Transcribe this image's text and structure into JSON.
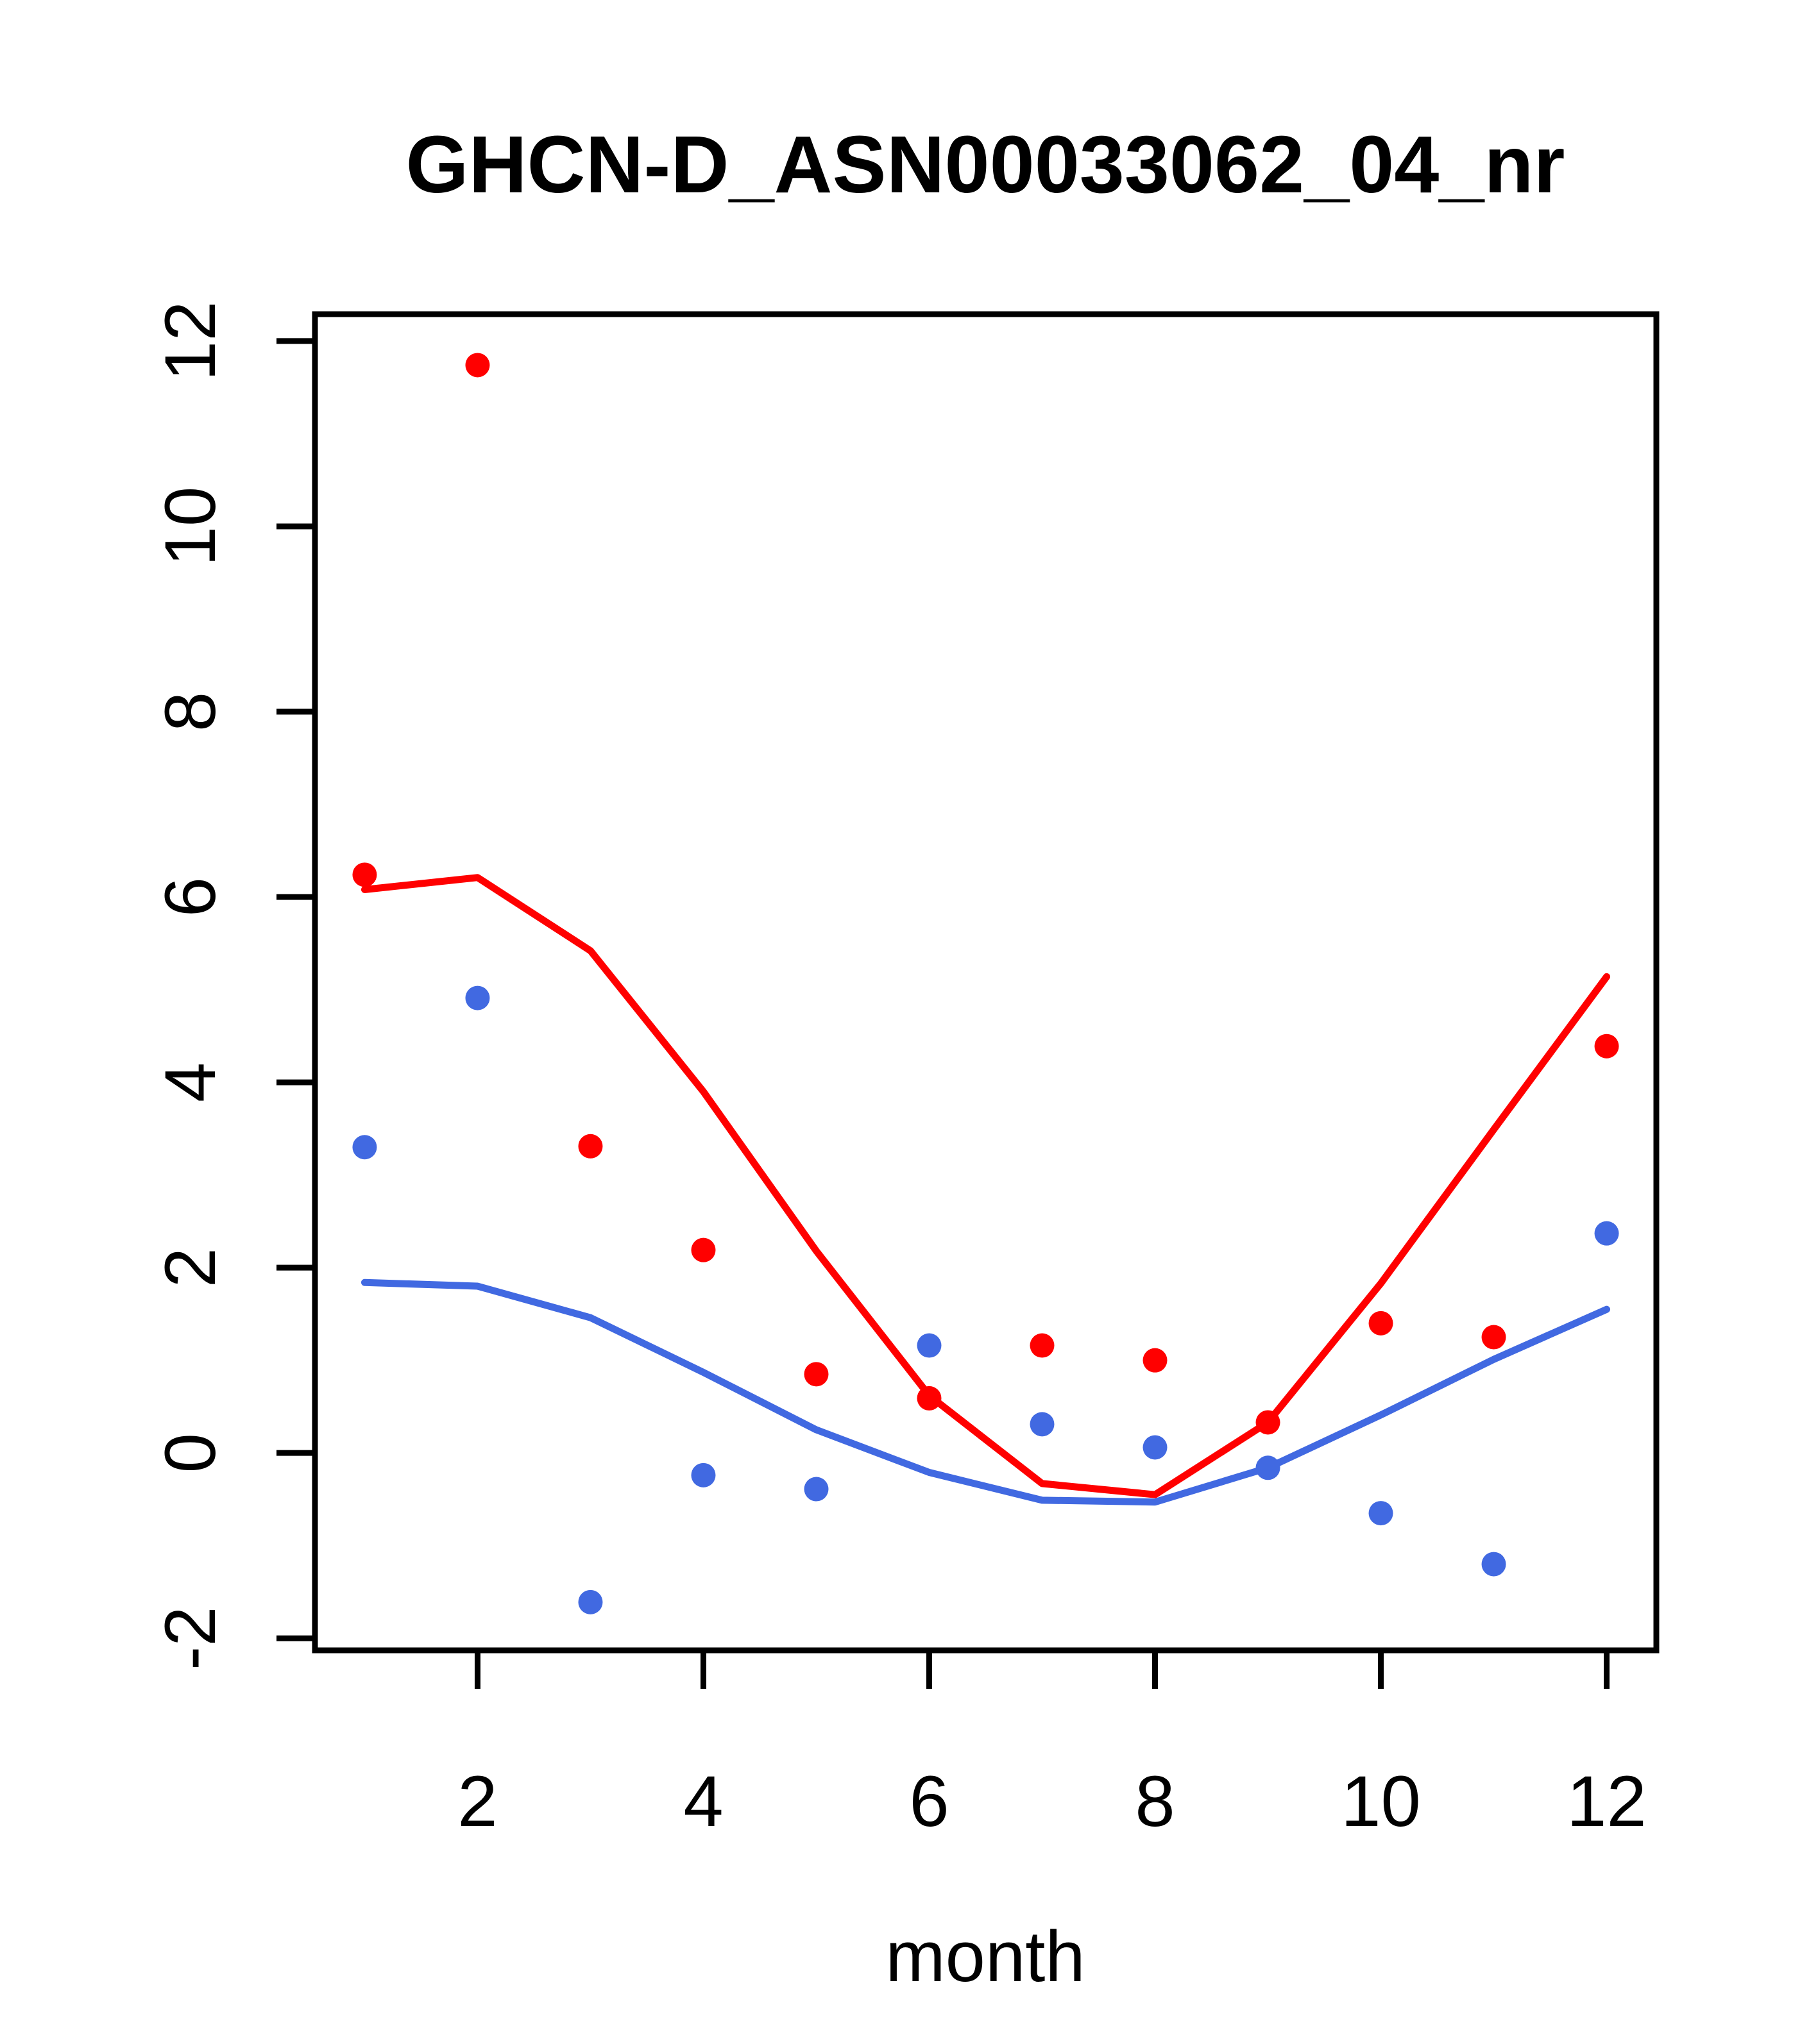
{
  "chart_data": {
    "type": "scatter",
    "title": "GHCN-D_ASN00033062_04_nr",
    "xlabel": "month",
    "ylabel": "",
    "x": [
      1,
      2,
      3,
      4,
      5,
      6,
      7,
      8,
      9,
      10,
      11,
      12
    ],
    "x_ticks": [
      2,
      4,
      6,
      8,
      10,
      12
    ],
    "y_ticks": [
      -2,
      0,
      2,
      4,
      6,
      8,
      10,
      12
    ],
    "xlim": [
      0.56,
      12.44
    ],
    "ylim": [
      -2.13,
      12.29
    ],
    "grid": "off",
    "legend": "none",
    "series": [
      {
        "name": "red-points",
        "kind": "points",
        "color": "#FF0000",
        "values": [
          6.24,
          11.74,
          3.31,
          2.19,
          0.85,
          0.59,
          1.16,
          1.0,
          0.33,
          1.4,
          1.25,
          4.39
        ]
      },
      {
        "name": "blue-points",
        "kind": "points",
        "color": "#4169E1",
        "values": [
          3.3,
          4.91,
          -1.61,
          -0.24,
          -0.39,
          1.16,
          0.31,
          0.06,
          -0.16,
          -0.65,
          -1.2,
          2.37
        ]
      },
      {
        "name": "red-line",
        "kind": "line",
        "color": "#FF0000",
        "values": [
          6.08,
          6.21,
          5.42,
          3.9,
          2.18,
          0.62,
          -0.33,
          -0.45,
          0.33,
          1.83,
          3.49,
          5.14
        ]
      },
      {
        "name": "blue-line",
        "kind": "line",
        "color": "#4169E1",
        "values": [
          1.84,
          1.8,
          1.46,
          0.87,
          0.25,
          -0.21,
          -0.51,
          -0.53,
          -0.16,
          0.41,
          1.01,
          1.55
        ]
      }
    ],
    "axis_color": "#000000",
    "text_color": "#000000"
  }
}
